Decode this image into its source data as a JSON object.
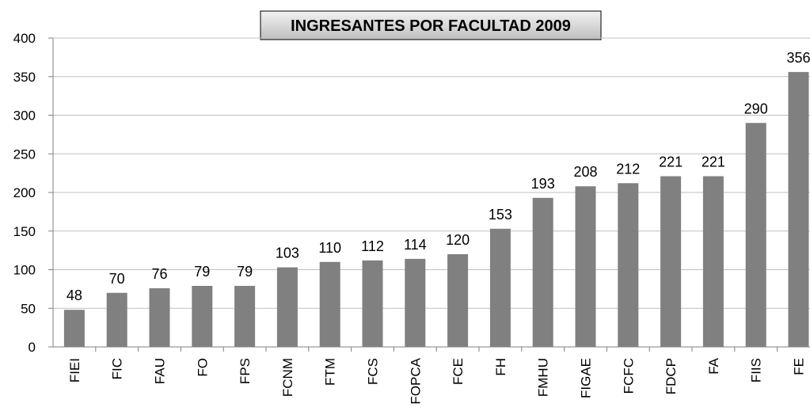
{
  "chart_data": {
    "type": "bar",
    "title": "INGRESANTES POR FACULTAD 2009",
    "categories": [
      "FIEI",
      "FIC",
      "FAU",
      "FO",
      "FPS",
      "FCNM",
      "FTM",
      "FCS",
      "FOPCA",
      "FCE",
      "FH",
      "FMHU",
      "FIGAE",
      "FCFC",
      "FDCP",
      "FA",
      "FIIS",
      "FE"
    ],
    "values": [
      48,
      70,
      76,
      79,
      79,
      103,
      110,
      112,
      114,
      120,
      153,
      193,
      208,
      212,
      221,
      221,
      290,
      356
    ],
    "color": "#808080",
    "ylim": [
      0,
      400
    ],
    "yticks": [
      0,
      50,
      100,
      150,
      200,
      250,
      300,
      350,
      400
    ],
    "grid": true
  }
}
